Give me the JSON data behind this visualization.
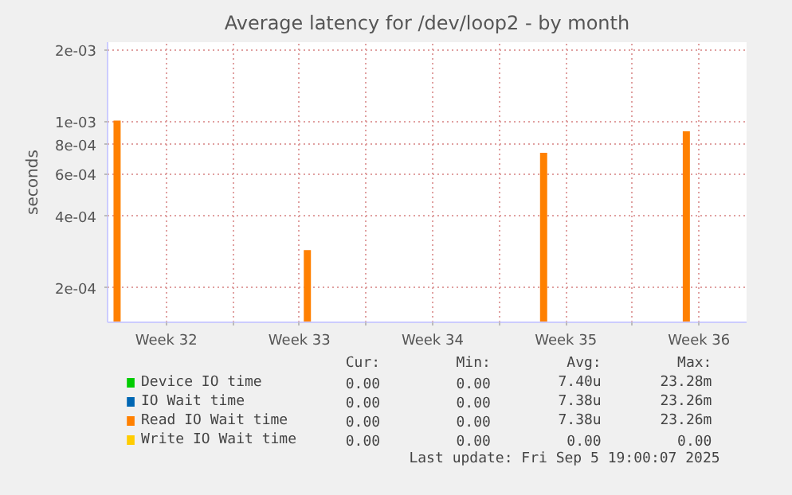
{
  "chart_data": {
    "type": "bar",
    "title": "Average latency for /dev/loop2 - by month",
    "ylabel": "seconds",
    "x": [
      "2025-08-04T22:00",
      "2025-08-14T22:00",
      "2025-08-27T08:00",
      "2025-09-03T20:00"
    ],
    "series": [
      {
        "name": "Device IO time",
        "color": "#00cc00",
        "values": [
          null,
          null,
          null,
          null
        ]
      },
      {
        "name": "IO Wait time",
        "color": "#0066b3",
        "values": [
          null,
          null,
          null,
          null
        ]
      },
      {
        "name": "Read IO Wait time",
        "color": "#ff8000",
        "values": [
          0.00101,
          0.000288,
          0.00074,
          0.00091
        ]
      },
      {
        "name": "Write IO Wait time",
        "color": "#ffcc00",
        "values": [
          null,
          null,
          null,
          null
        ]
      }
    ],
    "log": "y",
    "ylim": [
      0.000143,
      0.00216
    ],
    "yticks": [
      {
        "value": 0.0002,
        "label": "2e-04"
      },
      {
        "value": 0.0004,
        "label": "4e-04"
      },
      {
        "value": 0.0006,
        "label": "6e-04"
      },
      {
        "value": 0.0008,
        "label": "8e-04"
      },
      {
        "value": 0.001,
        "label": "1e-03"
      },
      {
        "value": 0.002,
        "label": "2e-03"
      }
    ],
    "xlim": [
      "2025-08-04T10:00",
      "2025-09-07T00:00"
    ],
    "xticks": [
      {
        "value": "2025-08-07T12:00",
        "label": "Week 32"
      },
      {
        "value": "2025-08-11T00:00",
        "label": null
      },
      {
        "value": "2025-08-14T12:00",
        "label": "Week 33"
      },
      {
        "value": "2025-08-18T00:00",
        "label": null
      },
      {
        "value": "2025-08-21T12:00",
        "label": "Week 34"
      },
      {
        "value": "2025-08-25T00:00",
        "label": null
      },
      {
        "value": "2025-08-28T12:00",
        "label": "Week 35"
      },
      {
        "value": "2025-09-01T00:00",
        "label": null
      },
      {
        "value": "2025-09-04T12:00",
        "label": "Week 36"
      }
    ],
    "grid": true,
    "legend": "bottom",
    "annotations": [
      "Cur:",
      "Min:",
      "Avg:",
      "Max:",
      "0.00",
      "0.00",
      "7.40u",
      "23.28m",
      "0.00",
      "0.00",
      "7.38u",
      "23.26m",
      "0.00",
      "0.00",
      "7.38u",
      "23.26m",
      "0.00",
      "0.00",
      "0.00",
      "0.00",
      "Last update: Fri Sep  5 19:00:07 2025"
    ]
  }
}
